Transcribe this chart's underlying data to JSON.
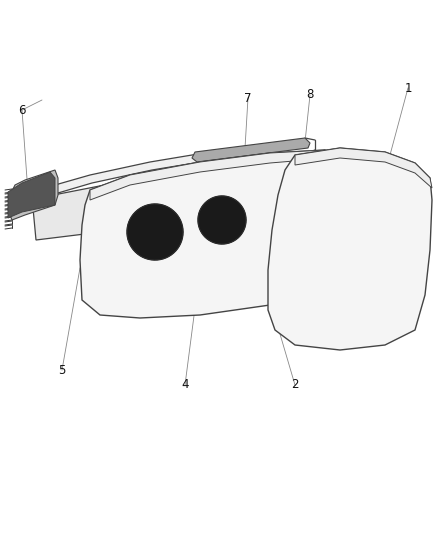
{
  "background_color": "#ffffff",
  "figure_width": 4.38,
  "figure_height": 5.33,
  "dpi": 100,
  "line_color": "#444444",
  "callout_color": "#888888",
  "dark_color": "#111111",
  "label_fontsize": 8.5
}
